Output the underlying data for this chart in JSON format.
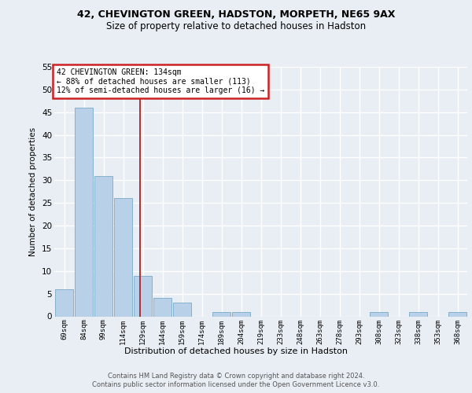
{
  "title1": "42, CHEVINGTON GREEN, HADSTON, MORPETH, NE65 9AX",
  "title2": "Size of property relative to detached houses in Hadston",
  "xlabel": "Distribution of detached houses by size in Hadston",
  "ylabel": "Number of detached properties",
  "bins": [
    "69sqm",
    "84sqm",
    "99sqm",
    "114sqm",
    "129sqm",
    "144sqm",
    "159sqm",
    "174sqm",
    "189sqm",
    "204sqm",
    "219sqm",
    "233sqm",
    "248sqm",
    "263sqm",
    "278sqm",
    "293sqm",
    "308sqm",
    "323sqm",
    "338sqm",
    "353sqm",
    "368sqm"
  ],
  "values": [
    6,
    46,
    31,
    26,
    9,
    4,
    3,
    0,
    1,
    1,
    0,
    0,
    0,
    0,
    0,
    0,
    1,
    0,
    1,
    0,
    1
  ],
  "bar_color": "#b8d0e8",
  "bar_edge_color": "#7aaac8",
  "bar_edge_width": 0.6,
  "red_line_color": "#aa2222",
  "annotation_line1": "42 CHEVINGTON GREEN: 134sqm",
  "annotation_line2": "← 88% of detached houses are smaller (113)",
  "annotation_line3": "12% of semi-detached houses are larger (16) →",
  "annotation_box_color": "#cc2222",
  "ylim": [
    0,
    55
  ],
  "yticks": [
    0,
    5,
    10,
    15,
    20,
    25,
    30,
    35,
    40,
    45,
    50,
    55
  ],
  "footer1": "Contains HM Land Registry data © Crown copyright and database right 2024.",
  "footer2": "Contains public sector information licensed under the Open Government Licence v3.0.",
  "background_color": "#e8eef4",
  "grid_color": "#ffffff"
}
